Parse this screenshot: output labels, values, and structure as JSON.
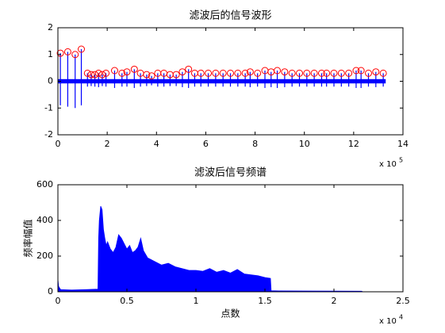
{
  "chart_data": [
    {
      "type": "spikes",
      "title": "滤波后的信号波形",
      "x_multiplier": "x 10",
      "x_exponent": "5",
      "xlim": [
        0,
        14
      ],
      "xticks": [
        0,
        2,
        4,
        6,
        8,
        10,
        12,
        14
      ],
      "ylim": [
        -2,
        2
      ],
      "yticks": [
        -2,
        -1,
        0,
        1,
        2
      ],
      "noise_band": {
        "color": "#0000ff",
        "x": [
          0,
          13.3
        ],
        "values": [
          -0.08,
          0.08
        ]
      },
      "series": [
        {
          "style": "spike",
          "color": "#0000ff",
          "x": [
            0.1,
            0.4,
            0.7,
            0.95,
            1.2,
            1.35,
            1.5,
            1.65,
            1.8,
            1.95,
            2.3,
            2.6,
            2.8,
            3.1,
            3.35,
            3.6,
            3.8,
            4.05,
            4.3,
            4.55,
            4.8,
            5.05,
            5.3,
            5.55,
            5.8,
            6.1,
            6.4,
            6.7,
            7.0,
            7.3,
            7.6,
            7.8,
            8.1,
            8.4,
            8.65,
            8.9,
            9.2,
            9.5,
            9.8,
            10.1,
            10.4,
            10.7,
            10.9,
            11.2,
            11.5,
            11.8,
            12.1,
            12.3,
            12.6,
            12.9,
            13.2
          ],
          "values": [
            1.05,
            1.1,
            1.0,
            1.2,
            0.3,
            0.25,
            0.25,
            0.3,
            0.25,
            0.3,
            0.4,
            0.3,
            0.35,
            0.45,
            0.3,
            0.25,
            0.2,
            0.3,
            0.3,
            0.25,
            0.25,
            0.35,
            0.45,
            0.3,
            0.3,
            0.3,
            0.3,
            0.3,
            0.3,
            0.3,
            0.3,
            0.35,
            0.3,
            0.4,
            0.35,
            0.4,
            0.35,
            0.3,
            0.3,
            0.3,
            0.3,
            0.3,
            0.3,
            0.3,
            0.3,
            0.3,
            0.4,
            0.4,
            0.3,
            0.35,
            0.3
          ],
          "low": [
            -0.9,
            -0.95,
            -1.0,
            -0.9,
            -0.2,
            -0.18,
            -0.2,
            -0.22,
            -0.18,
            -0.2,
            -0.25,
            -0.2,
            -0.2,
            -0.25,
            -0.2,
            -0.18,
            -0.15,
            -0.2,
            -0.2,
            -0.18,
            -0.18,
            -0.22,
            -0.25,
            -0.2,
            -0.2,
            -0.2,
            -0.2,
            -0.2,
            -0.2,
            -0.2,
            -0.2,
            -0.22,
            -0.2,
            -0.25,
            -0.22,
            -0.25,
            -0.22,
            -0.2,
            -0.2,
            -0.2,
            -0.2,
            -0.2,
            -0.2,
            -0.2,
            -0.2,
            -0.2,
            -0.25,
            -0.25,
            -0.2,
            -0.22,
            -0.2
          ]
        },
        {
          "style": "circle",
          "color": "#ff0000",
          "x": [
            0.1,
            0.4,
            0.7,
            0.95,
            1.2,
            1.35,
            1.5,
            1.65,
            1.8,
            1.95,
            2.3,
            2.6,
            2.8,
            3.1,
            3.35,
            3.6,
            3.8,
            4.05,
            4.3,
            4.55,
            4.8,
            5.05,
            5.3,
            5.55,
            5.8,
            6.1,
            6.4,
            6.7,
            7.0,
            7.3,
            7.6,
            7.8,
            8.1,
            8.4,
            8.65,
            8.9,
            9.2,
            9.5,
            9.8,
            10.1,
            10.4,
            10.7,
            10.9,
            11.2,
            11.5,
            11.8,
            12.1,
            12.3,
            12.6,
            12.9,
            13.2
          ],
          "values": [
            1.05,
            1.1,
            1.0,
            1.2,
            0.3,
            0.25,
            0.25,
            0.3,
            0.25,
            0.3,
            0.4,
            0.3,
            0.35,
            0.45,
            0.3,
            0.25,
            0.2,
            0.3,
            0.3,
            0.25,
            0.25,
            0.35,
            0.45,
            0.3,
            0.3,
            0.3,
            0.3,
            0.3,
            0.3,
            0.3,
            0.3,
            0.35,
            0.3,
            0.4,
            0.35,
            0.4,
            0.35,
            0.3,
            0.3,
            0.3,
            0.3,
            0.3,
            0.3,
            0.3,
            0.3,
            0.3,
            0.4,
            0.4,
            0.3,
            0.35,
            0.3
          ]
        }
      ]
    },
    {
      "type": "area",
      "title": "滤波后信号频谱",
      "x_label": "点数",
      "y_label": "频率幅值",
      "x_multiplier": "x 10",
      "x_exponent": "4",
      "color": "#0000ff",
      "xlim": [
        0,
        2.5
      ],
      "xticks": [
        0,
        0.5,
        1,
        1.5,
        2,
        2.5
      ],
      "ylim": [
        0,
        600
      ],
      "yticks": [
        0,
        200,
        400,
        600
      ],
      "x": [
        0,
        0.005,
        0.02,
        0.1,
        0.2,
        0.29,
        0.295,
        0.3,
        0.31,
        0.32,
        0.33,
        0.34,
        0.35,
        0.36,
        0.38,
        0.4,
        0.42,
        0.44,
        0.46,
        0.48,
        0.5,
        0.52,
        0.54,
        0.56,
        0.58,
        0.6,
        0.62,
        0.65,
        0.7,
        0.75,
        0.8,
        0.85,
        0.9,
        0.95,
        1.0,
        1.05,
        1.1,
        1.15,
        1.2,
        1.25,
        1.3,
        1.35,
        1.4,
        1.45,
        1.5,
        1.54,
        1.545,
        1.6,
        2.0,
        2.2,
        2.21
      ],
      "values": [
        70,
        30,
        12,
        10,
        12,
        15,
        300,
        400,
        480,
        460,
        350,
        300,
        260,
        280,
        240,
        220,
        250,
        320,
        300,
        270,
        240,
        260,
        220,
        230,
        250,
        300,
        230,
        190,
        170,
        150,
        160,
        140,
        130,
        120,
        120,
        115,
        130,
        110,
        120,
        105,
        125,
        100,
        95,
        90,
        80,
        75,
        6,
        5,
        4,
        3,
        0
      ]
    }
  ]
}
